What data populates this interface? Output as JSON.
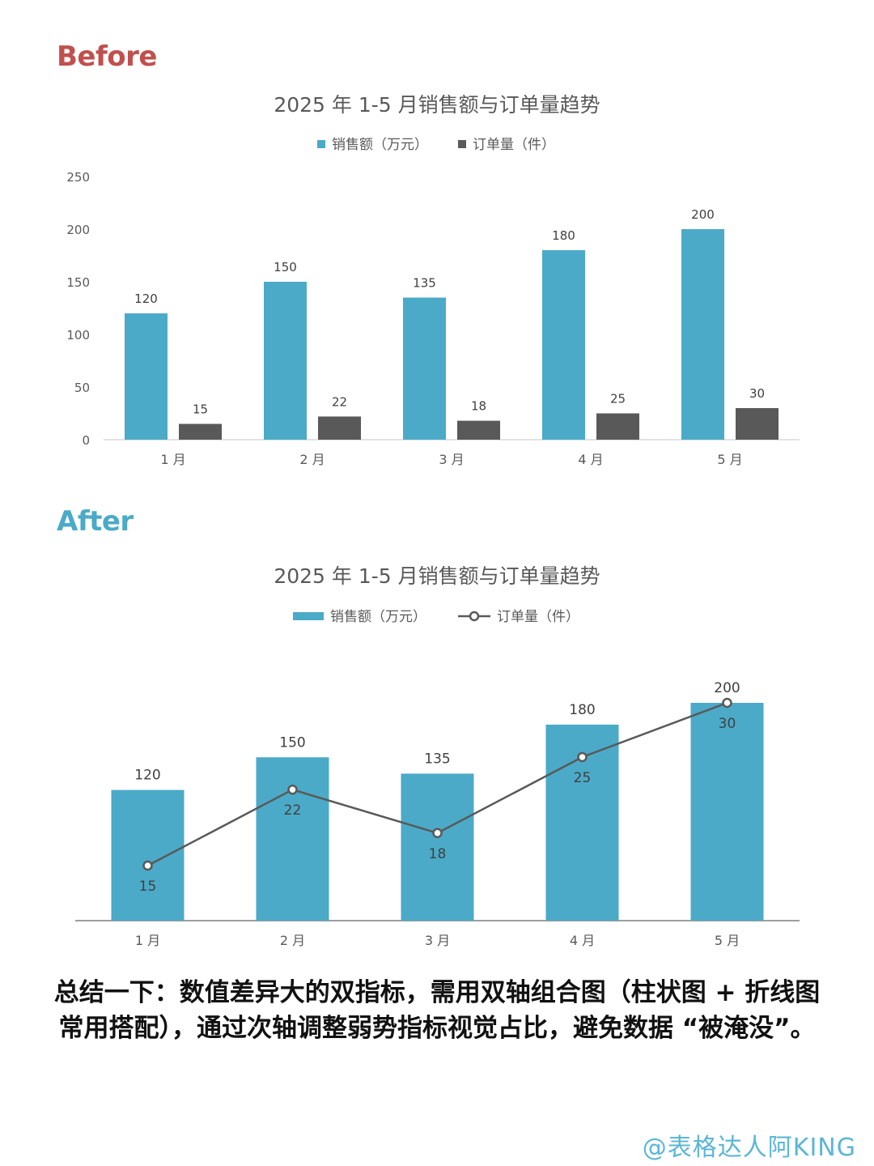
{
  "labels": {
    "before": "Before",
    "after": "After"
  },
  "summary": "总结一下：数值差异大的双指标，需用双轴组合图（柱状图 + 折线图常用搭配），通过次轴调整弱势指标视觉占比，避免数据 “被淹没”。",
  "watermark": "@表格达人阿KING",
  "colors": {
    "bar_primary": "#4baac8",
    "bar_secondary": "#595959",
    "line": "#595959",
    "axis_text": "#595959",
    "title_text": "#595959",
    "before_label": "#c0504d",
    "after_label": "#4baac8"
  },
  "chart_data": [
    {
      "id": "before",
      "type": "bar",
      "title": "2025 年 1-5 月销售额与订单量趋势",
      "categories": [
        "1 月",
        "2 月",
        "3 月",
        "4 月",
        "5 月"
      ],
      "series": [
        {
          "name": "销售额（万元）",
          "type": "bar",
          "values": [
            120,
            150,
            135,
            180,
            200
          ]
        },
        {
          "name": "订单量（件）",
          "type": "bar",
          "values": [
            15,
            22,
            18,
            25,
            30
          ]
        }
      ],
      "ylim": [
        0,
        250
      ],
      "yticks": [
        0,
        50,
        100,
        150,
        200,
        250
      ],
      "legend_position": "top",
      "grid": false
    },
    {
      "id": "after",
      "type": "bar",
      "title": "2025 年 1-5 月销售额与订单量趋势",
      "categories": [
        "1 月",
        "2 月",
        "3 月",
        "4 月",
        "5 月"
      ],
      "series": [
        {
          "name": "销售额（万元）",
          "type": "bar",
          "axis": "primary",
          "values": [
            120,
            150,
            135,
            180,
            200
          ]
        },
        {
          "name": "订单量（件）",
          "type": "line",
          "axis": "secondary",
          "values": [
            15,
            22,
            18,
            25,
            30
          ]
        }
      ],
      "ylim": [
        0,
        200
      ],
      "y2lim": [
        0,
        30
      ],
      "legend_position": "top",
      "grid": false,
      "axes_visible": false
    }
  ]
}
